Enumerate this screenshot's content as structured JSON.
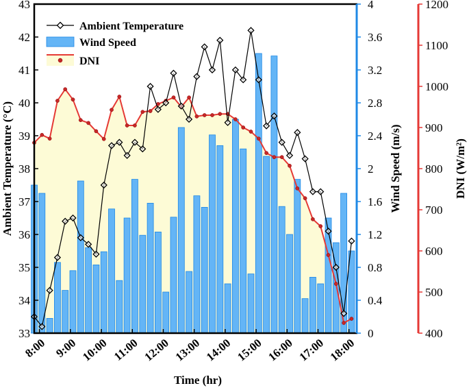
{
  "chart_data": {
    "type": "bar+line",
    "xlabel": "Time (hr)",
    "x_ticks": [
      "8:00",
      "9:00",
      "10:00",
      "11:00",
      "12:00",
      "13:00",
      "14:00",
      "15:00",
      "16:00",
      "17:00",
      "18:00"
    ],
    "x_range": [
      7.833,
      18.25
    ],
    "x": [
      7.833,
      8.083,
      8.333,
      8.583,
      8.833,
      9.083,
      9.333,
      9.583,
      9.833,
      10.083,
      10.333,
      10.583,
      10.833,
      11.083,
      11.333,
      11.583,
      11.833,
      12.083,
      12.333,
      12.583,
      12.833,
      13.083,
      13.333,
      13.583,
      13.833,
      14.083,
      14.333,
      14.583,
      14.833,
      15.083,
      15.333,
      15.583,
      15.833,
      16.083,
      16.333,
      16.583,
      16.833,
      17.083,
      17.333,
      17.583,
      17.833,
      18.083
    ],
    "left_axis": {
      "label": "Ambient Temperature (°C)",
      "range": [
        33,
        43
      ],
      "ticks": [
        33,
        34,
        35,
        36,
        37,
        38,
        39,
        40,
        41,
        42,
        43
      ],
      "color": "#000000"
    },
    "right_axis_1": {
      "label": "Wind Speed (m/s)",
      "range": [
        0,
        4
      ],
      "ticks": [
        "0",
        "0.4",
        "0.8",
        "1.2",
        "1.6",
        "2",
        "2.4",
        "2.8",
        "3.2",
        "3.6",
        "4"
      ],
      "color": "#1e88e5"
    },
    "right_axis_2": {
      "label": "DNI (W/m²)",
      "range": [
        400,
        1200
      ],
      "ticks": [
        400,
        500,
        600,
        700,
        800,
        900,
        1000,
        1100,
        1200
      ],
      "color": "#e53935"
    },
    "series": [
      {
        "name": "Ambient Temperature",
        "type": "line",
        "axis": "left",
        "marker": "diamond",
        "values": [
          33.5,
          33.2,
          34.3,
          35.3,
          36.4,
          36.5,
          35.9,
          35.7,
          35.4,
          37.5,
          38.7,
          38.8,
          38.4,
          38.8,
          38.6,
          40.5,
          39.8,
          40.0,
          40.9,
          39.9,
          39.5,
          40.8,
          41.7,
          41.0,
          41.9,
          39.4,
          41.0,
          40.7,
          42.2,
          40.7,
          39.3,
          39.6,
          38.8,
          38.4,
          39.1,
          38.3,
          37.3,
          37.3,
          36.1,
          35.0,
          33.6,
          35.8
        ]
      },
      {
        "name": "Wind Speed",
        "type": "bar",
        "axis": "right_1",
        "color": "#64b5f6",
        "values": [
          1.8,
          1.7,
          0.18,
          0.86,
          0.52,
          0.76,
          1.85,
          1.04,
          0.83,
          0.99,
          1.51,
          0.64,
          1.4,
          1.87,
          1.19,
          1.58,
          1.23,
          0.5,
          1.41,
          2.5,
          0.75,
          1.67,
          1.53,
          2.41,
          2.28,
          0.6,
          2.6,
          2.24,
          0.72,
          3.4,
          2.15,
          3.37,
          1.54,
          1.2,
          1.87,
          0.42,
          0.68,
          0.6,
          1.4,
          1.1,
          1.7,
          1.0
        ]
      },
      {
        "name": "DNI",
        "type": "line",
        "axis": "right_2",
        "color": "#e53935",
        "marker": "circle",
        "values": [
          863,
          882,
          873,
          965,
          993,
          968,
          918,
          911,
          891,
          872,
          943,
          975,
          905,
          905,
          938,
          940,
          957,
          965,
          973,
          950,
          973,
          927,
          930,
          930,
          933,
          933,
          920,
          900,
          890,
          873,
          838,
          828,
          828,
          807,
          752,
          728,
          677,
          660,
          590,
          520,
          425,
          435
        ]
      }
    ],
    "legend": {
      "position": "top-left",
      "entries": [
        "Ambient Temperature",
        "Wind Speed",
        "DNI"
      ]
    }
  }
}
